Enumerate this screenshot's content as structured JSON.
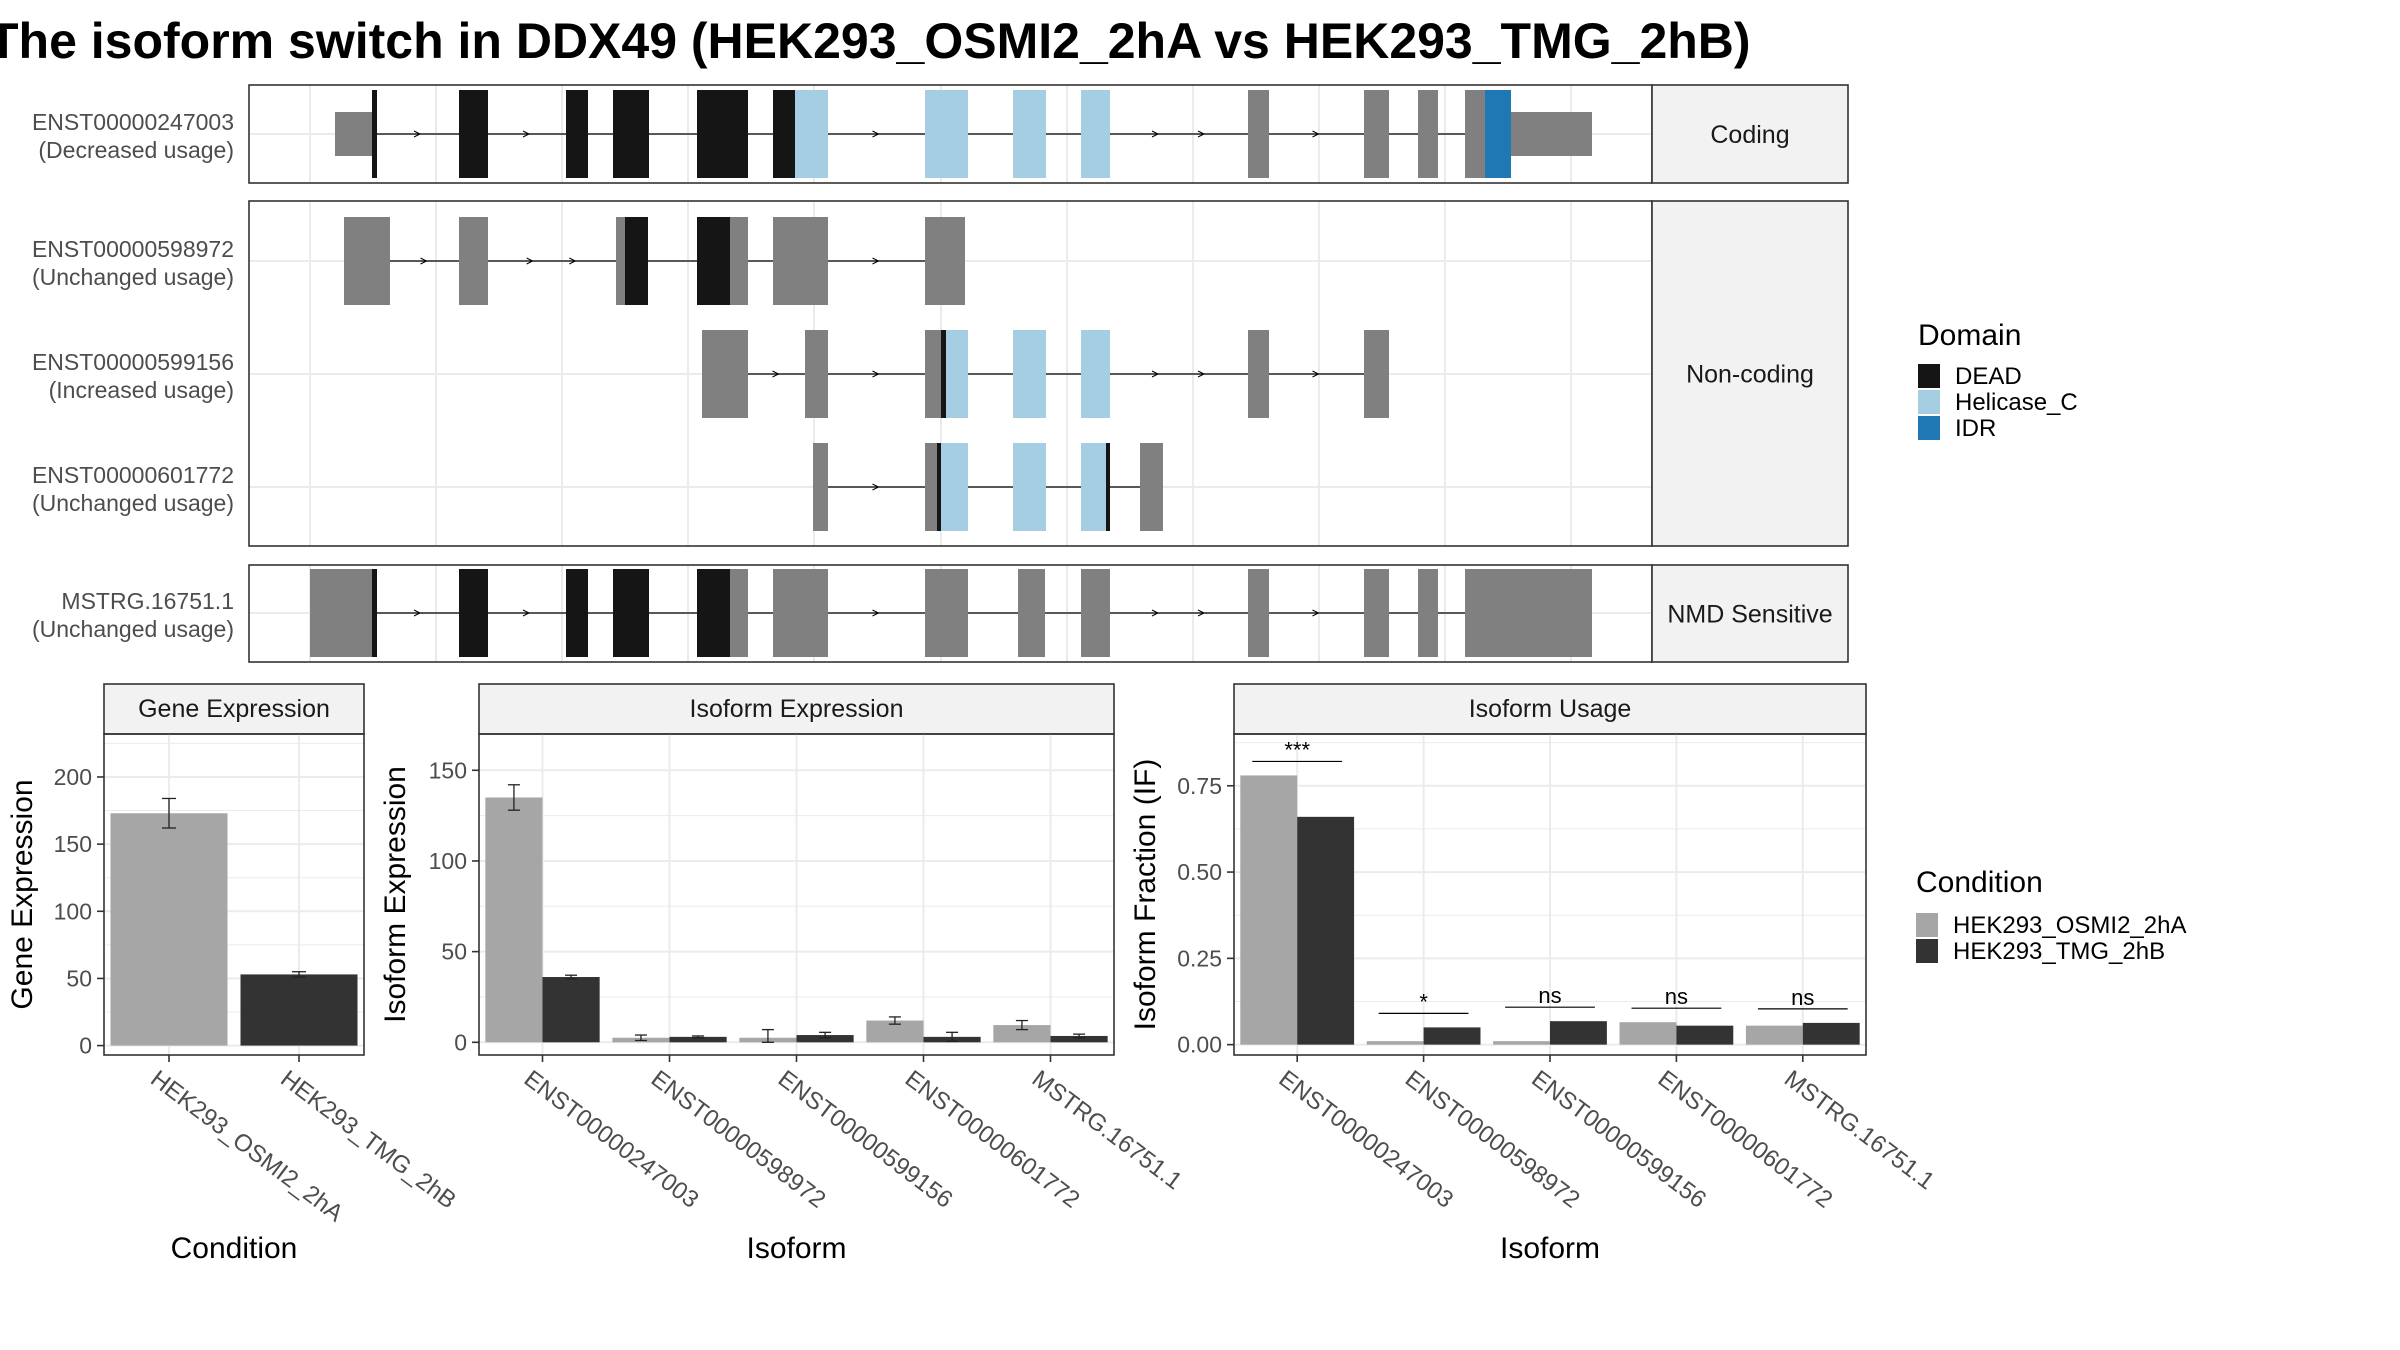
{
  "title": "The isoform switch in DDX49 (HEK293_OSMI2_2hA vs HEK293_TMG_2hB)",
  "colors": {
    "DEAD": "#151515",
    "Helicase_C": "#a6cee3",
    "IDR": "#1f78b4",
    "utr": "#808080",
    "cond1": "#a6a6a6",
    "cond2": "#333333",
    "grid": "#ebebeb",
    "strip": "#f2f2f2",
    "text": "#4d4d4d"
  },
  "isoform_panel": {
    "domain_legend": {
      "title": "Domain",
      "entries": [
        "DEAD",
        "Helicase_C",
        "IDR"
      ]
    },
    "groups": [
      {
        "label": "Coding",
        "isoforms": [
          "ENST00000247003"
        ]
      },
      {
        "label": "Non-coding",
        "isoforms": [
          "ENST00000598972",
          "ENST00000599156",
          "ENST00000601772"
        ]
      },
      {
        "label": "NMD Sensitive",
        "isoforms": [
          "MSTRG.16751.1"
        ]
      }
    ],
    "isoforms": [
      {
        "id": "ENST00000247003",
        "usage": "(Decreased usage)",
        "exons": [
          [
            335,
            372,
            "t"
          ],
          [
            372,
            377,
            "b"
          ],
          [
            459,
            488,
            "b"
          ],
          [
            566,
            588,
            "b"
          ],
          [
            613,
            649,
            "b"
          ],
          [
            697,
            730,
            "b"
          ],
          [
            730,
            748,
            "b"
          ],
          [
            773,
            795,
            "b"
          ],
          [
            795,
            828,
            "h"
          ],
          [
            925,
            968,
            "h"
          ],
          [
            1013,
            1046,
            "h"
          ],
          [
            1081,
            1110,
            "h"
          ],
          [
            1248,
            1269,
            "c"
          ],
          [
            1364,
            1389,
            "c"
          ],
          [
            1418,
            1438,
            "c"
          ],
          [
            1465,
            1485,
            "c"
          ],
          [
            1485,
            1511,
            "i"
          ],
          [
            1511,
            1522,
            "t"
          ],
          [
            1522,
            1592,
            "t"
          ]
        ]
      },
      {
        "id": "ENST00000598972",
        "usage": "(Unchanged usage)",
        "exons": [
          [
            344,
            390,
            "c"
          ],
          [
            459,
            488,
            "c"
          ],
          [
            616,
            625,
            "c"
          ],
          [
            625,
            648,
            "b"
          ],
          [
            697,
            730,
            "b"
          ],
          [
            730,
            748,
            "c"
          ],
          [
            773,
            828,
            "c"
          ],
          [
            925,
            965,
            "c"
          ]
        ]
      },
      {
        "id": "ENST00000599156",
        "usage": "(Increased usage)",
        "exons": [
          [
            702,
            748,
            "c"
          ],
          [
            805,
            828,
            "c"
          ],
          [
            925,
            941,
            "c"
          ],
          [
            941,
            946,
            "b"
          ],
          [
            946,
            968,
            "h"
          ],
          [
            1013,
            1046,
            "h"
          ],
          [
            1081,
            1110,
            "h"
          ],
          [
            1248,
            1269,
            "c"
          ],
          [
            1364,
            1389,
            "c"
          ]
        ]
      },
      {
        "id": "ENST00000601772",
        "usage": "(Unchanged usage)",
        "exons": [
          [
            813,
            828,
            "c"
          ],
          [
            925,
            937,
            "c"
          ],
          [
            937,
            941,
            "b"
          ],
          [
            941,
            968,
            "h"
          ],
          [
            1013,
            1046,
            "h"
          ],
          [
            1081,
            1106,
            "h"
          ],
          [
            1106,
            1110,
            "b"
          ],
          [
            1140,
            1152,
            "c"
          ],
          [
            1152,
            1163,
            "c"
          ]
        ]
      },
      {
        "id": "MSTRG.16751.1",
        "usage": "(Unchanged usage)",
        "exons": [
          [
            310,
            352,
            "c"
          ],
          [
            352,
            372,
            "c"
          ],
          [
            372,
            377,
            "b"
          ],
          [
            459,
            488,
            "b"
          ],
          [
            566,
            588,
            "b"
          ],
          [
            613,
            649,
            "b"
          ],
          [
            697,
            730,
            "b"
          ],
          [
            730,
            748,
            "c"
          ],
          [
            773,
            828,
            "c"
          ],
          [
            925,
            968,
            "c"
          ],
          [
            1018,
            1027,
            "c"
          ],
          [
            1027,
            1045,
            "c"
          ],
          [
            1081,
            1110,
            "c"
          ],
          [
            1248,
            1269,
            "c"
          ],
          [
            1364,
            1389,
            "c"
          ],
          [
            1418,
            1438,
            "c"
          ],
          [
            1465,
            1592,
            "c"
          ]
        ]
      }
    ]
  },
  "condition_legend": {
    "title": "Condition",
    "entries": [
      "HEK293_OSMI2_2hA",
      "HEK293_TMG_2hB"
    ]
  },
  "chart_data": [
    {
      "type": "bar",
      "title": "Gene Expression",
      "xlabel": "Condition",
      "ylabel": "Gene Expression",
      "categories": [
        "HEK293_OSMI2_2hA",
        "HEK293_TMG_2hB"
      ],
      "values": [
        173,
        53
      ],
      "errors": [
        [
          162,
          184
        ],
        [
          51,
          55
        ]
      ],
      "ylim": [
        -7,
        232
      ],
      "yticks": [
        0,
        50,
        100,
        150,
        200
      ],
      "dodged": false
    },
    {
      "type": "bar",
      "title": "Isoform Expression",
      "xlabel": "Isoform",
      "ylabel": "Isoform Expression",
      "categories": [
        "ENST00000247003",
        "ENST00000598972",
        "ENST00000599156",
        "ENST00000601772",
        "MSTRG.16751.1"
      ],
      "series": [
        {
          "values": [
            135,
            2.5,
            2.5,
            12,
            9.5
          ],
          "errors": [
            [
              128,
              142
            ],
            [
              1,
              4
            ],
            [
              0,
              7
            ],
            [
              10,
              14
            ],
            [
              7,
              12
            ]
          ]
        },
        {
          "values": [
            36,
            3,
            4,
            3,
            3.5
          ],
          "errors": [
            [
              35,
              37
            ],
            [
              2.5,
              3.5
            ],
            [
              2.5,
              5.5
            ],
            [
              0.5,
              5.5
            ],
            [
              2.5,
              4.5
            ]
          ]
        }
      ],
      "ylim": [
        -7,
        170
      ],
      "yticks": [
        0,
        50,
        100,
        150
      ],
      "dodged": true
    },
    {
      "type": "bar",
      "title": "Isoform Usage",
      "xlabel": "Isoform",
      "ylabel": "Isoform Fraction (IF)",
      "categories": [
        "ENST00000247003",
        "ENST00000598972",
        "ENST00000599156",
        "ENST00000601772",
        "MSTRG.16751.1"
      ],
      "series": [
        {
          "values": [
            0.78,
            0.01,
            0.01,
            0.065,
            0.055
          ]
        },
        {
          "values": [
            0.66,
            0.05,
            0.068,
            0.055,
            0.063
          ]
        }
      ],
      "significance": [
        "***",
        "*",
        "ns",
        "ns",
        "ns"
      ],
      "ylim": [
        -0.03,
        0.9
      ],
      "yticks": [
        0,
        0.25,
        0.5,
        0.75
      ],
      "yticklabels": [
        "0.00",
        "0.25",
        "0.50",
        "0.75"
      ],
      "dodged": true
    }
  ]
}
